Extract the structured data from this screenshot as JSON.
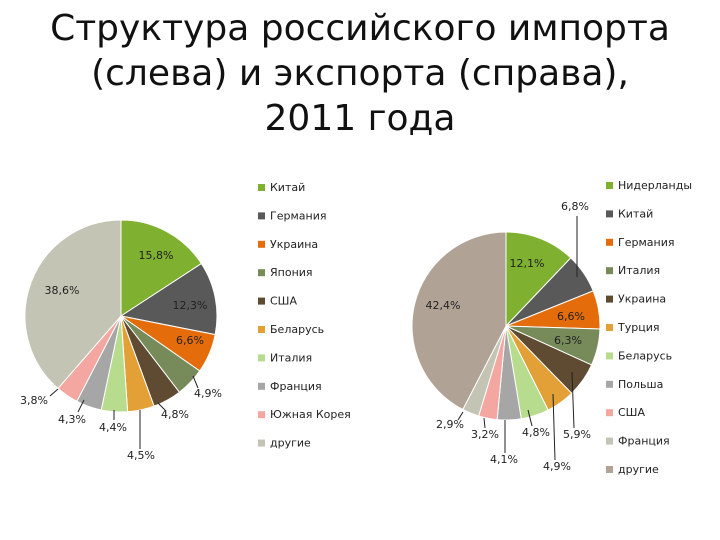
{
  "title_lines": [
    "Структура российского импорта",
    "(слева) и экспорта (справа),",
    "2011 года"
  ],
  "chart_data": [
    {
      "type": "pie",
      "categories": [
        "Китай",
        "Германия",
        "Украина",
        "Япония",
        "США",
        "Беларусь",
        "Италия",
        "Франция",
        "Южная Корея",
        "другие"
      ],
      "values": [
        15.8,
        12.3,
        6.6,
        4.9,
        4.8,
        4.5,
        4.4,
        4.3,
        3.8,
        38.6
      ],
      "labels": [
        "15,8%",
        "12,3%",
        "6,6%",
        "4,9%",
        "4,8%",
        "4,5%",
        "4,4%",
        "4,3%",
        "3,8%",
        "38,6%"
      ],
      "colors": [
        "#7fb02f",
        "#595959",
        "#e46c0a",
        "#778a5a",
        "#5f4a32",
        "#e3a036",
        "#b8dc8e",
        "#a6a6a6",
        "#f4a6a0",
        "#c4c4b4"
      ],
      "legend": "right"
    },
    {
      "type": "pie",
      "categories": [
        "Нидерланды",
        "Китай",
        "Германия",
        "Италия",
        "Украина",
        "Турция",
        "Беларусь",
        "Польша",
        "США",
        "Франция",
        "другие"
      ],
      "values": [
        12.1,
        6.8,
        6.6,
        6.3,
        5.9,
        4.9,
        4.8,
        4.1,
        3.2,
        2.9,
        42.4
      ],
      "labels": [
        "12,1%",
        "6,8%",
        "6,6%",
        "6,3%",
        "5,9%",
        "4,9%",
        "4,8%",
        "4,1%",
        "3,2%",
        "2,9%",
        "42,4%"
      ],
      "colors": [
        "#7fb02f",
        "#595959",
        "#e46c0a",
        "#778a5a",
        "#5f4a32",
        "#e3a036",
        "#b8dc8e",
        "#a6a6a6",
        "#f4a6a0",
        "#c4c4b4",
        "#b0a295"
      ],
      "legend": "right"
    }
  ]
}
